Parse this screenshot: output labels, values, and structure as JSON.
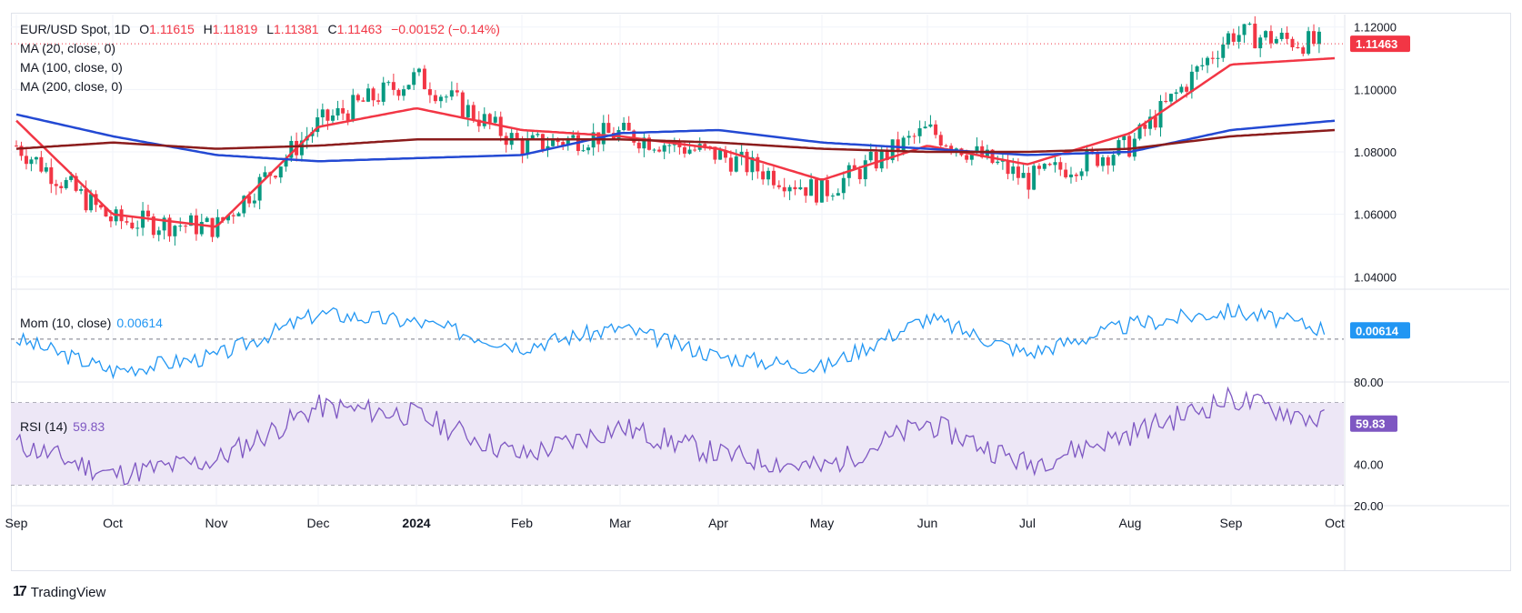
{
  "header": {
    "symbol": "EUR/USD Spot, 1D",
    "o_label": "O",
    "o": "1.11615",
    "h_label": "H",
    "h": "1.11819",
    "l_label": "L",
    "l": "1.11381",
    "c_label": "C",
    "c": "1.11463",
    "change": "−0.00152 (−0.14%)"
  },
  "legend": {
    "ma20": "MA (20, close, 0)",
    "ma100": "MA (100, close, 0)",
    "ma200": "MA (200, close, 0)",
    "mom_label": "Mom (10, close)",
    "mom_value": "0.00614",
    "rsi_label": "RSI (14)",
    "rsi_value": "59.83"
  },
  "footer": {
    "brand": "TradingView",
    "logo_mark": "17"
  },
  "colors": {
    "up": "#089981",
    "down": "#f23645",
    "ma20": "#f23645",
    "ma100": "#2349d3",
    "ma200": "#8b1c1c",
    "mom": "#2196f3",
    "rsi": "#7e57c2",
    "rsi_band": "#ede7f6"
  },
  "chart_data": [
    {
      "type": "candlestick",
      "title": "EUR/USD Spot, 1D",
      "ylim": [
        1.036,
        1.124
      ],
      "yticks": [
        "1.04000",
        "1.06000",
        "1.08000",
        "1.10000",
        "1.12000"
      ],
      "price_label": "1.11463",
      "x_months": [
        "Sep",
        "Oct",
        "Nov",
        "Dec",
        "2024",
        "Feb",
        "Mar",
        "Apr",
        "May",
        "Jun",
        "Jul",
        "Aug",
        "Sep",
        "Oct"
      ],
      "series": [
        {
          "name": "MA (20, close, 0)",
          "y_at_months": [
            1.09,
            1.06,
            1.056,
            1.088,
            1.094,
            1.087,
            1.085,
            1.081,
            1.071,
            1.082,
            1.076,
            1.086,
            1.108,
            1.11
          ]
        },
        {
          "name": "MA (100, close, 0)",
          "y_at_months": [
            1.092,
            1.085,
            1.079,
            1.077,
            1.078,
            1.079,
            1.086,
            1.087,
            1.083,
            1.081,
            1.079,
            1.08,
            1.087,
            1.09
          ]
        },
        {
          "name": "MA (200, close, 0)",
          "y_at_months": [
            1.081,
            1.083,
            1.081,
            1.082,
            1.084,
            1.084,
            1.084,
            1.083,
            1.081,
            1.08,
            1.08,
            1.081,
            1.085,
            1.087
          ]
        }
      ],
      "candles_close_at_months": [
        1.082,
        1.058,
        1.056,
        1.089,
        1.104,
        1.082,
        1.086,
        1.079,
        1.067,
        1.087,
        1.071,
        1.082,
        1.118,
        1.114
      ]
    },
    {
      "type": "line",
      "title": "Mom (10, close)",
      "last_value": 0.00614,
      "zero_line": 0.0,
      "series": [
        {
          "name": "Mom (10, close)",
          "y_at_months": [
            0.0,
            -0.022,
            -0.012,
            0.018,
            0.012,
            -0.005,
            0.008,
            -0.012,
            -0.02,
            0.015,
            -0.01,
            0.01,
            0.02,
            0.006
          ]
        }
      ]
    },
    {
      "type": "line",
      "title": "RSI (14)",
      "ylim": [
        20,
        80
      ],
      "yticks": [
        "20.00",
        "40.00",
        "80.00"
      ],
      "bands": [
        30,
        50,
        70
      ],
      "last_value": 59.83,
      "series": [
        {
          "name": "RSI (14)",
          "y_at_months": [
            50,
            35,
            42,
            68,
            64,
            44,
            58,
            45,
            38,
            60,
            40,
            55,
            72,
            59.83
          ]
        }
      ]
    }
  ]
}
